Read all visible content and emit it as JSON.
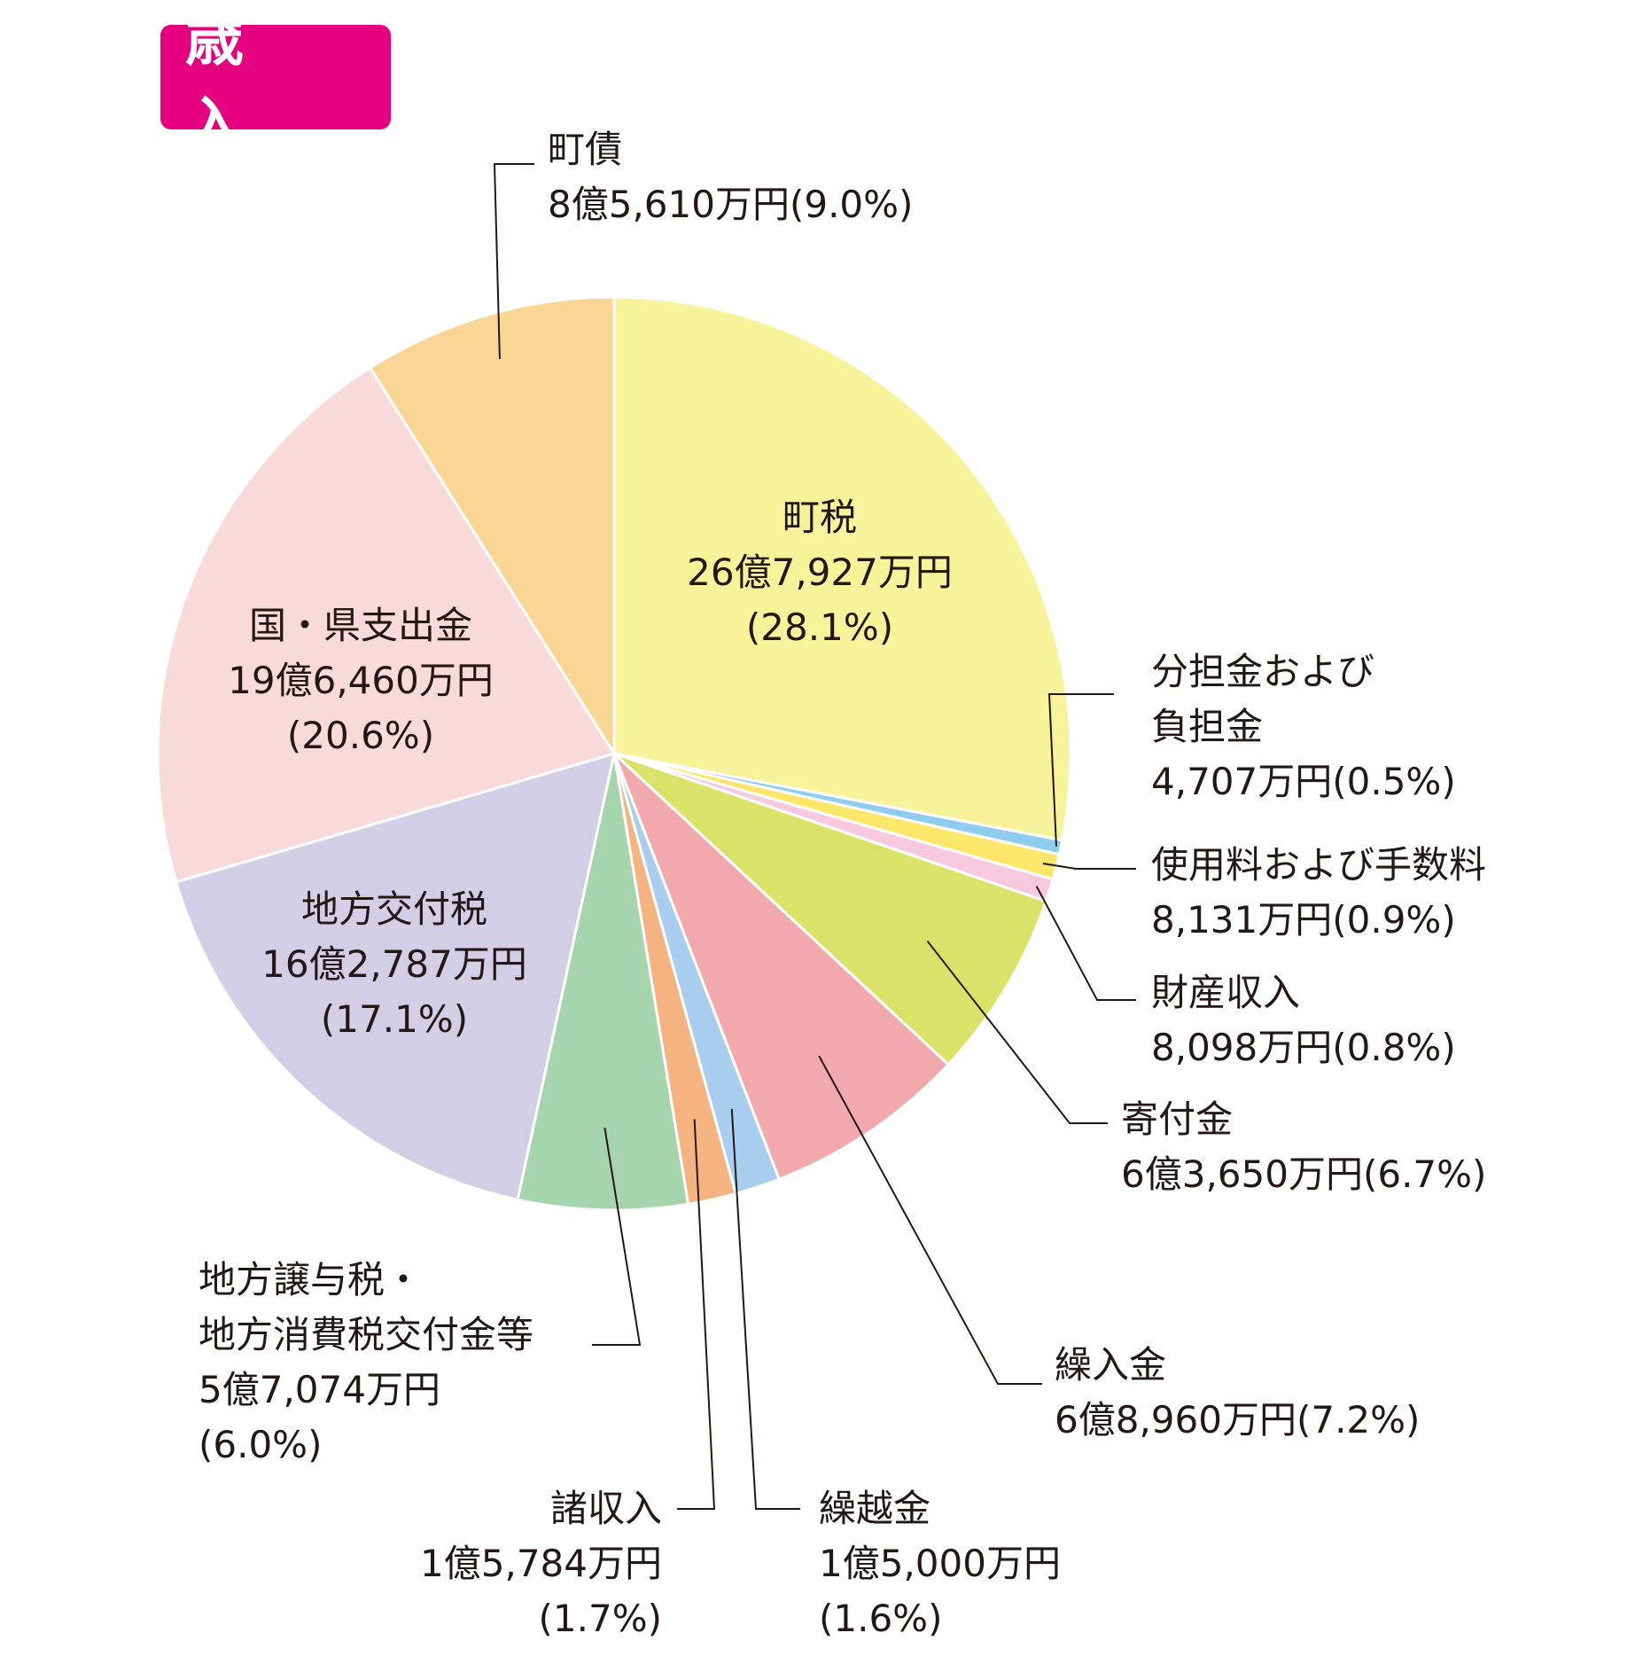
{
  "title": "歳 入",
  "chart_data": {
    "type": "pie",
    "title": "歳 入",
    "slices": [
      {
        "label": "町税",
        "amount": "26億7,927万円",
        "percent": "(28.1%)",
        "value": 28.1,
        "color": "#f7f39b"
      },
      {
        "label": "分担金および負担金",
        "label_lines": [
          "分担金および",
          "負担金"
        ],
        "amount": "4,707万円",
        "percent": "(0.5%)",
        "value": 0.5,
        "color": "#8fcdf0"
      },
      {
        "label": "使用料および手数料",
        "amount": "8,131万円",
        "percent": "(0.9%)",
        "value": 0.9,
        "color": "#fbe769"
      },
      {
        "label": "財産収入",
        "amount": "8,098万円",
        "percent": "(0.8%)",
        "value": 0.8,
        "color": "#f6c9de"
      },
      {
        "label": "寄付金",
        "amount": "6億3,650万円",
        "percent": "(6.7%)",
        "value": 6.7,
        "color": "#d9e36a"
      },
      {
        "label": "繰入金",
        "amount": "6億8,960万円",
        "percent": "(7.2%)",
        "value": 7.2,
        "color": "#f2a9ad"
      },
      {
        "label": "繰越金",
        "amount": "1億5,000万円",
        "percent": "(1.6%)",
        "value": 1.6,
        "color": "#a8cdee"
      },
      {
        "label": "諸収入",
        "amount": "1億5,784万円",
        "percent": "(1.7%)",
        "value": 1.7,
        "color": "#f5b382"
      },
      {
        "label": "地方譲与税・地方消費税交付金等",
        "label_lines": [
          "地方譲与税・",
          "地方消費税交付金等"
        ],
        "amount": "5億7,074万円",
        "percent": "(6.0%)",
        "value": 6.0,
        "color": "#a6d4ac"
      },
      {
        "label": "地方交付税",
        "amount": "16億2,787万円",
        "percent": "(17.1%)",
        "value": 17.1,
        "color": "#d1cee6"
      },
      {
        "label": "国・県支出金",
        "amount": "19億6,460万円",
        "percent": "(20.6%)",
        "value": 20.6,
        "color": "#f9dadb"
      },
      {
        "label": "町債",
        "amount": "8億5,610万円",
        "percent": "(9.0%)",
        "value": 9.0,
        "color": "#f9d693"
      }
    ]
  }
}
